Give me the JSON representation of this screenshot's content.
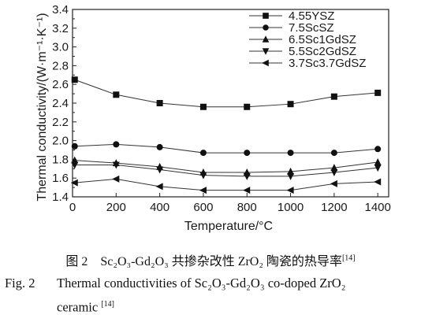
{
  "chart_data": {
    "type": "line",
    "xlabel": "Temperature/°C",
    "ylabel": "Thermal conductivity/(W·m⁻¹·K⁻¹)",
    "xlim": [
      0,
      1450
    ],
    "ylim": [
      1.4,
      3.4
    ],
    "xticks": [
      0,
      200,
      400,
      600,
      800,
      1000,
      1200,
      1400
    ],
    "yticks": [
      1.4,
      1.6,
      1.8,
      2.0,
      2.2,
      2.4,
      2.6,
      2.8,
      3.0,
      3.2,
      3.4
    ],
    "ytick_labels": [
      "1.4",
      "1.6",
      "1.8",
      "2.0",
      "2.2",
      "2.4",
      "2.6",
      "2.8",
      "3.0",
      "3.2",
      "3.4"
    ],
    "grid": false,
    "legend_position": "top-right",
    "x": [
      10,
      200,
      400,
      600,
      800,
      1000,
      1200,
      1400
    ],
    "series": [
      {
        "name": "4.55YSZ",
        "marker": "square",
        "values": [
          2.65,
          2.49,
          2.4,
          2.36,
          2.36,
          2.39,
          2.47,
          2.51
        ]
      },
      {
        "name": "7.5ScSZ",
        "marker": "circle",
        "values": [
          1.94,
          1.96,
          1.93,
          1.87,
          1.87,
          1.87,
          1.87,
          1.91
        ]
      },
      {
        "name": "6.5Sc1GdSZ",
        "marker": "triangle-up",
        "values": [
          1.79,
          1.76,
          1.72,
          1.66,
          1.66,
          1.67,
          1.71,
          1.77
        ]
      },
      {
        "name": "5.5Sc2GdSZ",
        "marker": "triangle-down",
        "values": [
          1.74,
          1.74,
          1.69,
          1.63,
          1.62,
          1.62,
          1.66,
          1.71
        ]
      },
      {
        "name": "3.7Sc3.7GdSZ",
        "marker": "triangle-left",
        "values": [
          1.55,
          1.59,
          1.51,
          1.47,
          1.47,
          1.47,
          1.54,
          1.56
        ]
      }
    ]
  },
  "caption": {
    "cn_number": "图 2",
    "cn_text_pre": "Sc",
    "cn_formula": "Sc₂O₃-Gd₂O₃ 共掺杂改性 ZrO₂ 陶瓷的热导率",
    "cn_ref": "[14]",
    "en_number": "Fig. 2",
    "en_text": "Thermal conductivities of Sc₂O₃-Gd₂O₃ co-doped ZrO₂",
    "en_text_line2": "ceramic",
    "en_ref": "[14]"
  }
}
